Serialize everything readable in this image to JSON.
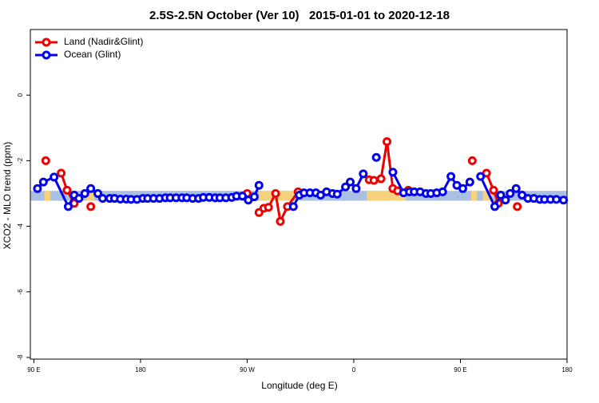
{
  "chart_data": {
    "type": "line",
    "title": "2.5S-2.5N October (Ver 10)   2015-01-01 to 2020-12-18",
    "x_label": "Longitude (deg E)",
    "y_label": "XCO2 - MLO trend (ppm)",
    "xlim": [
      87,
      540
    ],
    "ylim": [
      -8.05,
      2
    ],
    "xticks": [
      {
        "value": 90,
        "label": "90 E"
      },
      {
        "value": 180,
        "label": "180"
      },
      {
        "value": 270,
        "label": "90 W"
      },
      {
        "value": 360,
        "label": "0"
      },
      {
        "value": 450,
        "label": "90 E"
      },
      {
        "value": 540,
        "label": "180"
      }
    ],
    "yticks": [
      0,
      -2,
      -4,
      -6,
      -8
    ],
    "legend": "top-left",
    "band": {
      "ylim": [
        -3.22,
        -2.92
      ],
      "color": "#a9c0e2",
      "land_color": "#f7d27e",
      "land_ranges": [
        [
          99,
          104
        ],
        [
          134,
          141
        ],
        [
          280,
          313
        ],
        [
          371,
          404
        ],
        [
          459,
          464
        ],
        [
          469,
          477
        ]
      ]
    },
    "series": [
      {
        "name": "Land (Nadir&Glint)",
        "color": "#ee0000",
        "x": [
          100,
          null,
          113,
          118,
          124,
          null,
          138,
          null,
          270,
          null,
          280,
          284,
          288,
          294,
          298,
          304,
          313,
          null,
          373,
          377,
          383,
          388,
          393,
          397,
          406,
          null,
          460,
          null,
          472,
          478,
          482,
          null,
          498
        ],
        "values": [
          -2.0,
          null,
          -2.38,
          -2.9,
          -3.3,
          null,
          -3.4,
          null,
          -3.0,
          null,
          -3.58,
          -3.45,
          -3.42,
          -3.0,
          -3.85,
          -3.4,
          -2.95,
          null,
          -2.58,
          -2.6,
          -2.55,
          -1.42,
          -2.85,
          -2.92,
          -2.9,
          null,
          -2.0,
          null,
          -2.38,
          -2.9,
          -3.3,
          null,
          -3.4
        ]
      },
      {
        "name": "Ocean (Glint)",
        "color": "#0000ee",
        "x": [
          93,
          98,
          107,
          119,
          124,
          128,
          133,
          138,
          144,
          148,
          154,
          158,
          163,
          168,
          172,
          177,
          182,
          186,
          191,
          196,
          201,
          205,
          210,
          215,
          219,
          224,
          229,
          233,
          238,
          243,
          247,
          252,
          257,
          261,
          266,
          271,
          276,
          280,
          null,
          309,
          314,
          318,
          323,
          328,
          332,
          337,
          342,
          346,
          353,
          357,
          362,
          368,
          null,
          379,
          null,
          393,
          402,
          407,
          411,
          416,
          421,
          425,
          430,
          435,
          442,
          447,
          452,
          458,
          null,
          467,
          479,
          484,
          488,
          492,
          497,
          502,
          507,
          512,
          517,
          521,
          526,
          531,
          537
        ],
        "values": [
          -2.85,
          -2.65,
          -2.5,
          -3.4,
          -3.05,
          -3.15,
          -3.0,
          -2.85,
          -3.0,
          -3.15,
          -3.15,
          -3.15,
          -3.17,
          -3.17,
          -3.18,
          -3.18,
          -3.15,
          -3.15,
          -3.15,
          -3.15,
          -3.13,
          -3.13,
          -3.13,
          -3.13,
          -3.13,
          -3.15,
          -3.15,
          -3.12,
          -3.12,
          -3.13,
          -3.13,
          -3.13,
          -3.12,
          -3.08,
          -3.08,
          -3.2,
          -3.1,
          -2.75,
          null,
          -3.4,
          -3.05,
          -2.98,
          -2.98,
          -2.98,
          -3.05,
          -2.95,
          -3.0,
          -3.02,
          -2.8,
          -2.65,
          -2.85,
          -2.4,
          null,
          -1.9,
          null,
          -2.35,
          -2.98,
          -2.95,
          -2.95,
          -2.95,
          -3.0,
          -3.0,
          -2.98,
          -2.95,
          -2.48,
          -2.75,
          -2.85,
          -2.65,
          null,
          -2.48,
          -3.4,
          -3.05,
          -3.2,
          -3.0,
          -2.85,
          -3.05,
          -3.15,
          -3.15,
          -3.18,
          -3.18,
          -3.18,
          -3.18,
          -3.2
        ]
      }
    ]
  }
}
